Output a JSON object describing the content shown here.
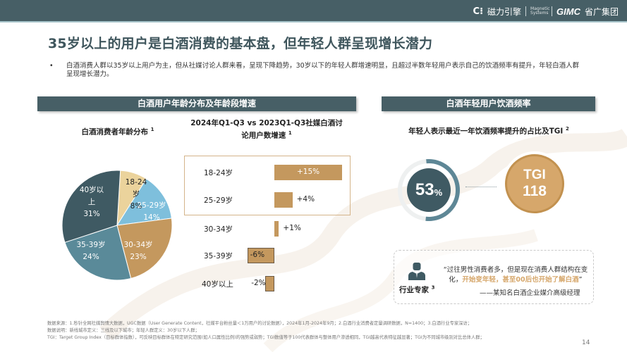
{
  "header": {
    "brand": {
      "logo_icon": "c-dots-logo-icon",
      "name_cn": "磁力引擎",
      "partner_tiny": "Magnetic Systems",
      "group_en": "GIMC",
      "group_cn": "省广集团"
    },
    "accent_color": "#475f66"
  },
  "title": "35岁以上的用户是白酒消费的基本盘，但年轻人群呈现增长潜力",
  "summary": {
    "bullet": "•",
    "text": "白酒消费人群以35岁以上用户为主，但从社媒讨论人群来看，呈现下降趋势，30岁以下的年轻人群增速明显，且超过半数年轻用户表示自己的饮酒频率有提升，年轻白酒人群呈现增长潜力。"
  },
  "left_panel": {
    "header": "白酒用户年龄分布及年龄段增速",
    "pie_title": "白酒消费者年龄分布",
    "pie_title_note": "1",
    "bar_title_line1": "2024年Q1-Q3 vs 2023Q1-Q3社媒白酒讨",
    "bar_title_line2": "论用户数增速",
    "bar_title_note": "1"
  },
  "right_panel": {
    "header": "白酒年轻用户饮酒频率",
    "subtitle": "年轻人表示最近一年饮酒频率提升的占比及TGI",
    "subtitle_note": "2",
    "ring": {
      "value": "53",
      "unit": "%"
    },
    "tgi": {
      "label": "TGI",
      "value": "118"
    },
    "expert": {
      "icon": "businessman-icon",
      "label": "行业专家",
      "note": "3",
      "quote_part1": "“过往男性消费者多，但是现在消费人群结构在变化，",
      "quote_highlight": "开始变年轻，甚至00后也开始了解白酒",
      "quote_end": "”",
      "source": "——某知名白酒企业媒介高级经理"
    }
  },
  "chart_data": [
    {
      "type": "pie",
      "title": "白酒消费者年龄分布",
      "categories": [
        "18-24岁",
        "25-29岁",
        "30-34岁",
        "35-39岁",
        "40岁以上"
      ],
      "values": [
        8,
        14,
        23,
        24,
        31
      ],
      "unit": "%",
      "colors": [
        "#ebd39c",
        "#7ebfdc",
        "#c4985e",
        "#5a8a99",
        "#3f5a63"
      ],
      "labels_display": [
        "18-24岁\n8%",
        "25-29岁\n14%",
        "30-34岁\n23%",
        "35-39岁\n24%",
        "40岁以\n上\n31%"
      ],
      "legend": "none (labels on slices)"
    },
    {
      "type": "bar",
      "orientation": "horizontal",
      "title": "2024年Q1-Q3 vs 2023Q1-Q3社媒白酒讨论用户数增速",
      "categories": [
        "18-24岁",
        "25-29岁",
        "30-34岁",
        "35-39岁",
        "40岁以上"
      ],
      "values": [
        15,
        4,
        1,
        -6,
        -2
      ],
      "value_labels": [
        "+15%",
        "+4%",
        "+1%",
        "-6%",
        "-2%"
      ],
      "unit": "%",
      "color": "#c4985e",
      "highlighted_categories": [
        "18-24岁",
        "25-29岁"
      ],
      "grid": false
    },
    {
      "type": "donut",
      "title": "年轻人表示最近一年饮酒频率提升的占比及TGI",
      "values": [
        53
      ],
      "unit": "%",
      "tgi": 118
    }
  ],
  "footnotes": {
    "line1": "数据来源：1.秒针全网社媒舆情大数据，UGC数据（User Generate Content，社媒平台粉丝量＜1万用户的讨论数据），2024年1月-2024年9月；2.白酒行业消费者定量调研数据，N=1400；3.白酒行业专家深访；",
    "line2": "数据说明：新线城市定义：三线及以下城市；年轻人群定义：30岁以下人群；",
    "line3": "TGI：Target Group Index（目标群体指数），可反映目标群体在特定研究范围(如人口属性比例)的强势或弱势；TGI数值等于100代表群体与整体用户渗透相同，TGI越高代表特征越显著；TGI为不同城市级别对比总体人群；"
  },
  "page_number": "14"
}
